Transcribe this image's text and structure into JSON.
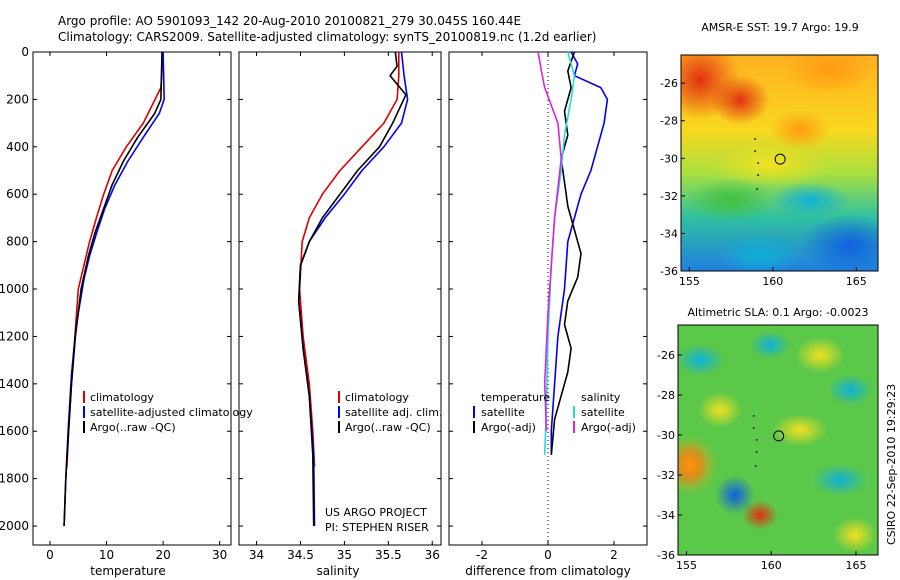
{
  "header": {
    "line1": "Argo profile: AO 5901093_142 20-Aug-2010 20100821_279 30.045S 160.44E",
    "line2": "Climatology: CARS2009. Satellite-adjusted climatology: synTS_20100819.nc (1.2d earlier)"
  },
  "side_credit": "CSIRO 22-Sep-2010 19:29:23",
  "pi_credit": [
    "US ARGO PROJECT",
    "PI: STEPHEN RISER"
  ],
  "colors": {
    "climatology": "#dd0000",
    "satellite": "#0000ee",
    "argo": "#000000",
    "satellite_salinity": "#22dddd",
    "argo_adj_salinity": "#dd22dd"
  },
  "chart_data": [
    {
      "type": "line",
      "xlabel": "temperature",
      "ylabel": "",
      "xlim": [
        -3,
        32
      ],
      "ylim": [
        2080,
        0
      ],
      "xticks": [
        0,
        10,
        20,
        30
      ],
      "yticks": [
        0,
        200,
        400,
        600,
        800,
        1000,
        1200,
        1400,
        1600,
        1800,
        2000
      ],
      "legend_placement": "lower-right",
      "series": [
        {
          "name": "climatology",
          "color_key": "climatology",
          "x": [
            20,
            19.6,
            16.5,
            13.5,
            11,
            9.5,
            8.2,
            7,
            6,
            5,
            4.4,
            3.8,
            3.3,
            3
          ],
          "y": [
            0,
            150,
            300,
            400,
            500,
            600,
            700,
            800,
            900,
            1000,
            1200,
            1400,
            1600,
            1750
          ]
        },
        {
          "name": "satellite-adjusted climatology",
          "color_key": "satellite",
          "x": [
            20,
            20.2,
            19.3,
            16.5,
            13.8,
            11.5,
            9.7,
            8.3,
            7,
            6,
            4.6,
            3.8,
            3.2,
            2.8,
            2.5
          ],
          "y": [
            0,
            200,
            260,
            360,
            460,
            560,
            660,
            760,
            860,
            960,
            1160,
            1360,
            1600,
            1800,
            2000
          ]
        },
        {
          "name": "Argo(..raw -QC)",
          "color_key": "argo",
          "x": [
            19.8,
            19.6,
            18.5,
            15.5,
            13,
            11,
            9.5,
            8,
            6.8,
            5.5,
            4.5,
            3.8,
            3.3,
            2.8,
            2.5
          ],
          "y": [
            0,
            200,
            260,
            360,
            460,
            560,
            660,
            760,
            860,
            1000,
            1200,
            1400,
            1600,
            1800,
            2000
          ]
        }
      ]
    },
    {
      "type": "line",
      "xlabel": "salinity",
      "ylabel": "",
      "xlim": [
        33.8,
        36.1
      ],
      "ylim": [
        2080,
        0
      ],
      "xticks": [
        34,
        34.5,
        35,
        35.5,
        36
      ],
      "legend_placement": "lower-right",
      "series": [
        {
          "name": "climatology",
          "color_key": "climatology",
          "x": [
            35.62,
            35.62,
            35.6,
            35.45,
            35.2,
            34.95,
            34.75,
            34.6,
            34.52,
            34.49,
            34.53,
            34.6,
            34.64,
            34.66
          ],
          "y": [
            0,
            100,
            200,
            300,
            400,
            500,
            600,
            700,
            800,
            1000,
            1200,
            1400,
            1600,
            1750
          ]
        },
        {
          "name": "satellite adj. clim.",
          "color_key": "satellite",
          "x": [
            35.65,
            35.68,
            35.72,
            35.65,
            35.45,
            35.2,
            35,
            34.78,
            34.6,
            34.5,
            34.48,
            34.53,
            34.6,
            34.65,
            34.66
          ],
          "y": [
            0,
            100,
            200,
            300,
            400,
            500,
            600,
            700,
            800,
            900,
            1050,
            1250,
            1450,
            1700,
            2000
          ]
        },
        {
          "name": "Argo(..raw -QC)",
          "color_key": "argo",
          "x": [
            35.58,
            35.6,
            35.52,
            35.7,
            35.55,
            35.4,
            35.15,
            34.95,
            34.75,
            34.6,
            34.5,
            34.48,
            34.53,
            34.6,
            34.64,
            34.65
          ],
          "y": [
            0,
            60,
            100,
            180,
            300,
            400,
            500,
            600,
            700,
            800,
            900,
            1050,
            1250,
            1450,
            1700,
            2000
          ]
        }
      ]
    },
    {
      "type": "line",
      "xlabel": "difference from climatology",
      "ylabel": "",
      "xlim": [
        -3,
        3
      ],
      "ylim": [
        2080,
        0
      ],
      "xticks": [
        -2,
        0,
        2
      ],
      "reference_line_x": 0,
      "legend_placement": "lower-center",
      "legend_left_title": "temperature",
      "legend_right_title": "salinity",
      "series": [
        {
          "name": "satellite",
          "group": "temperature",
          "color_key": "satellite",
          "x": [
            0.7,
            0.9,
            0.8,
            1.6,
            1.8,
            1.7,
            1.5,
            1.3,
            1.0,
            0.8,
            0.6,
            0.5,
            0.3,
            0.2,
            0.1,
            0.1
          ],
          "y": [
            0,
            50,
            100,
            150,
            200,
            300,
            400,
            500,
            600,
            700,
            800,
            1000,
            1200,
            1400,
            1600,
            1700
          ]
        },
        {
          "name": "Argo(-adj)",
          "group": "temperature",
          "color_key": "argo",
          "x": [
            0.8,
            0.6,
            0.7,
            0.5,
            0.6,
            0.4,
            0.5,
            0.6,
            0.8,
            1.0,
            0.9,
            0.6,
            0.5,
            0.7,
            0.6,
            0.4,
            0.2,
            0.1
          ],
          "y": [
            0,
            80,
            150,
            250,
            350,
            450,
            550,
            650,
            750,
            850,
            950,
            1050,
            1150,
            1250,
            1350,
            1450,
            1550,
            1700
          ]
        },
        {
          "name": "satellite",
          "group": "salinity",
          "color_key": "satellite_salinity",
          "x": [
            0.6,
            0.8,
            0.7,
            0.5,
            0.4,
            0.2,
            0.1,
            0.0,
            -0.05,
            -0.1
          ],
          "y": [
            0,
            100,
            200,
            350,
            500,
            700,
            900,
            1200,
            1500,
            1700
          ]
        },
        {
          "name": "Argo(-adj)",
          "group": "salinity",
          "color_key": "argo_adj_salinity",
          "x": [
            -0.3,
            -0.2,
            -0.1,
            0.3,
            0.4,
            0.2,
            0.1,
            0.0,
            -0.1,
            -0.05
          ],
          "y": [
            0,
            80,
            150,
            300,
            450,
            700,
            900,
            1100,
            1400,
            1600
          ]
        }
      ]
    },
    {
      "type": "heatmap",
      "title": "AMSR-E SST: 19.7 Argo: 19.9",
      "xlim": [
        154.5,
        166.3
      ],
      "ylim": [
        -36,
        -24.5
      ],
      "xticks": [
        155,
        160,
        165
      ],
      "yticks": [
        -26,
        -28,
        -30,
        -32,
        -34,
        -36
      ],
      "marker": {
        "lon": 160.44,
        "lat": -30.045
      }
    },
    {
      "type": "heatmap",
      "title": "Altimetric SLA: 0.1 Argo: -0.0023",
      "xlim": [
        154.5,
        166.3
      ],
      "ylim": [
        -36,
        -24.5
      ],
      "xticks": [
        155,
        160,
        165
      ],
      "yticks": [
        -26,
        -28,
        -30,
        -32,
        -34,
        -36
      ],
      "marker": {
        "lon": 160.44,
        "lat": -30.045
      }
    }
  ]
}
